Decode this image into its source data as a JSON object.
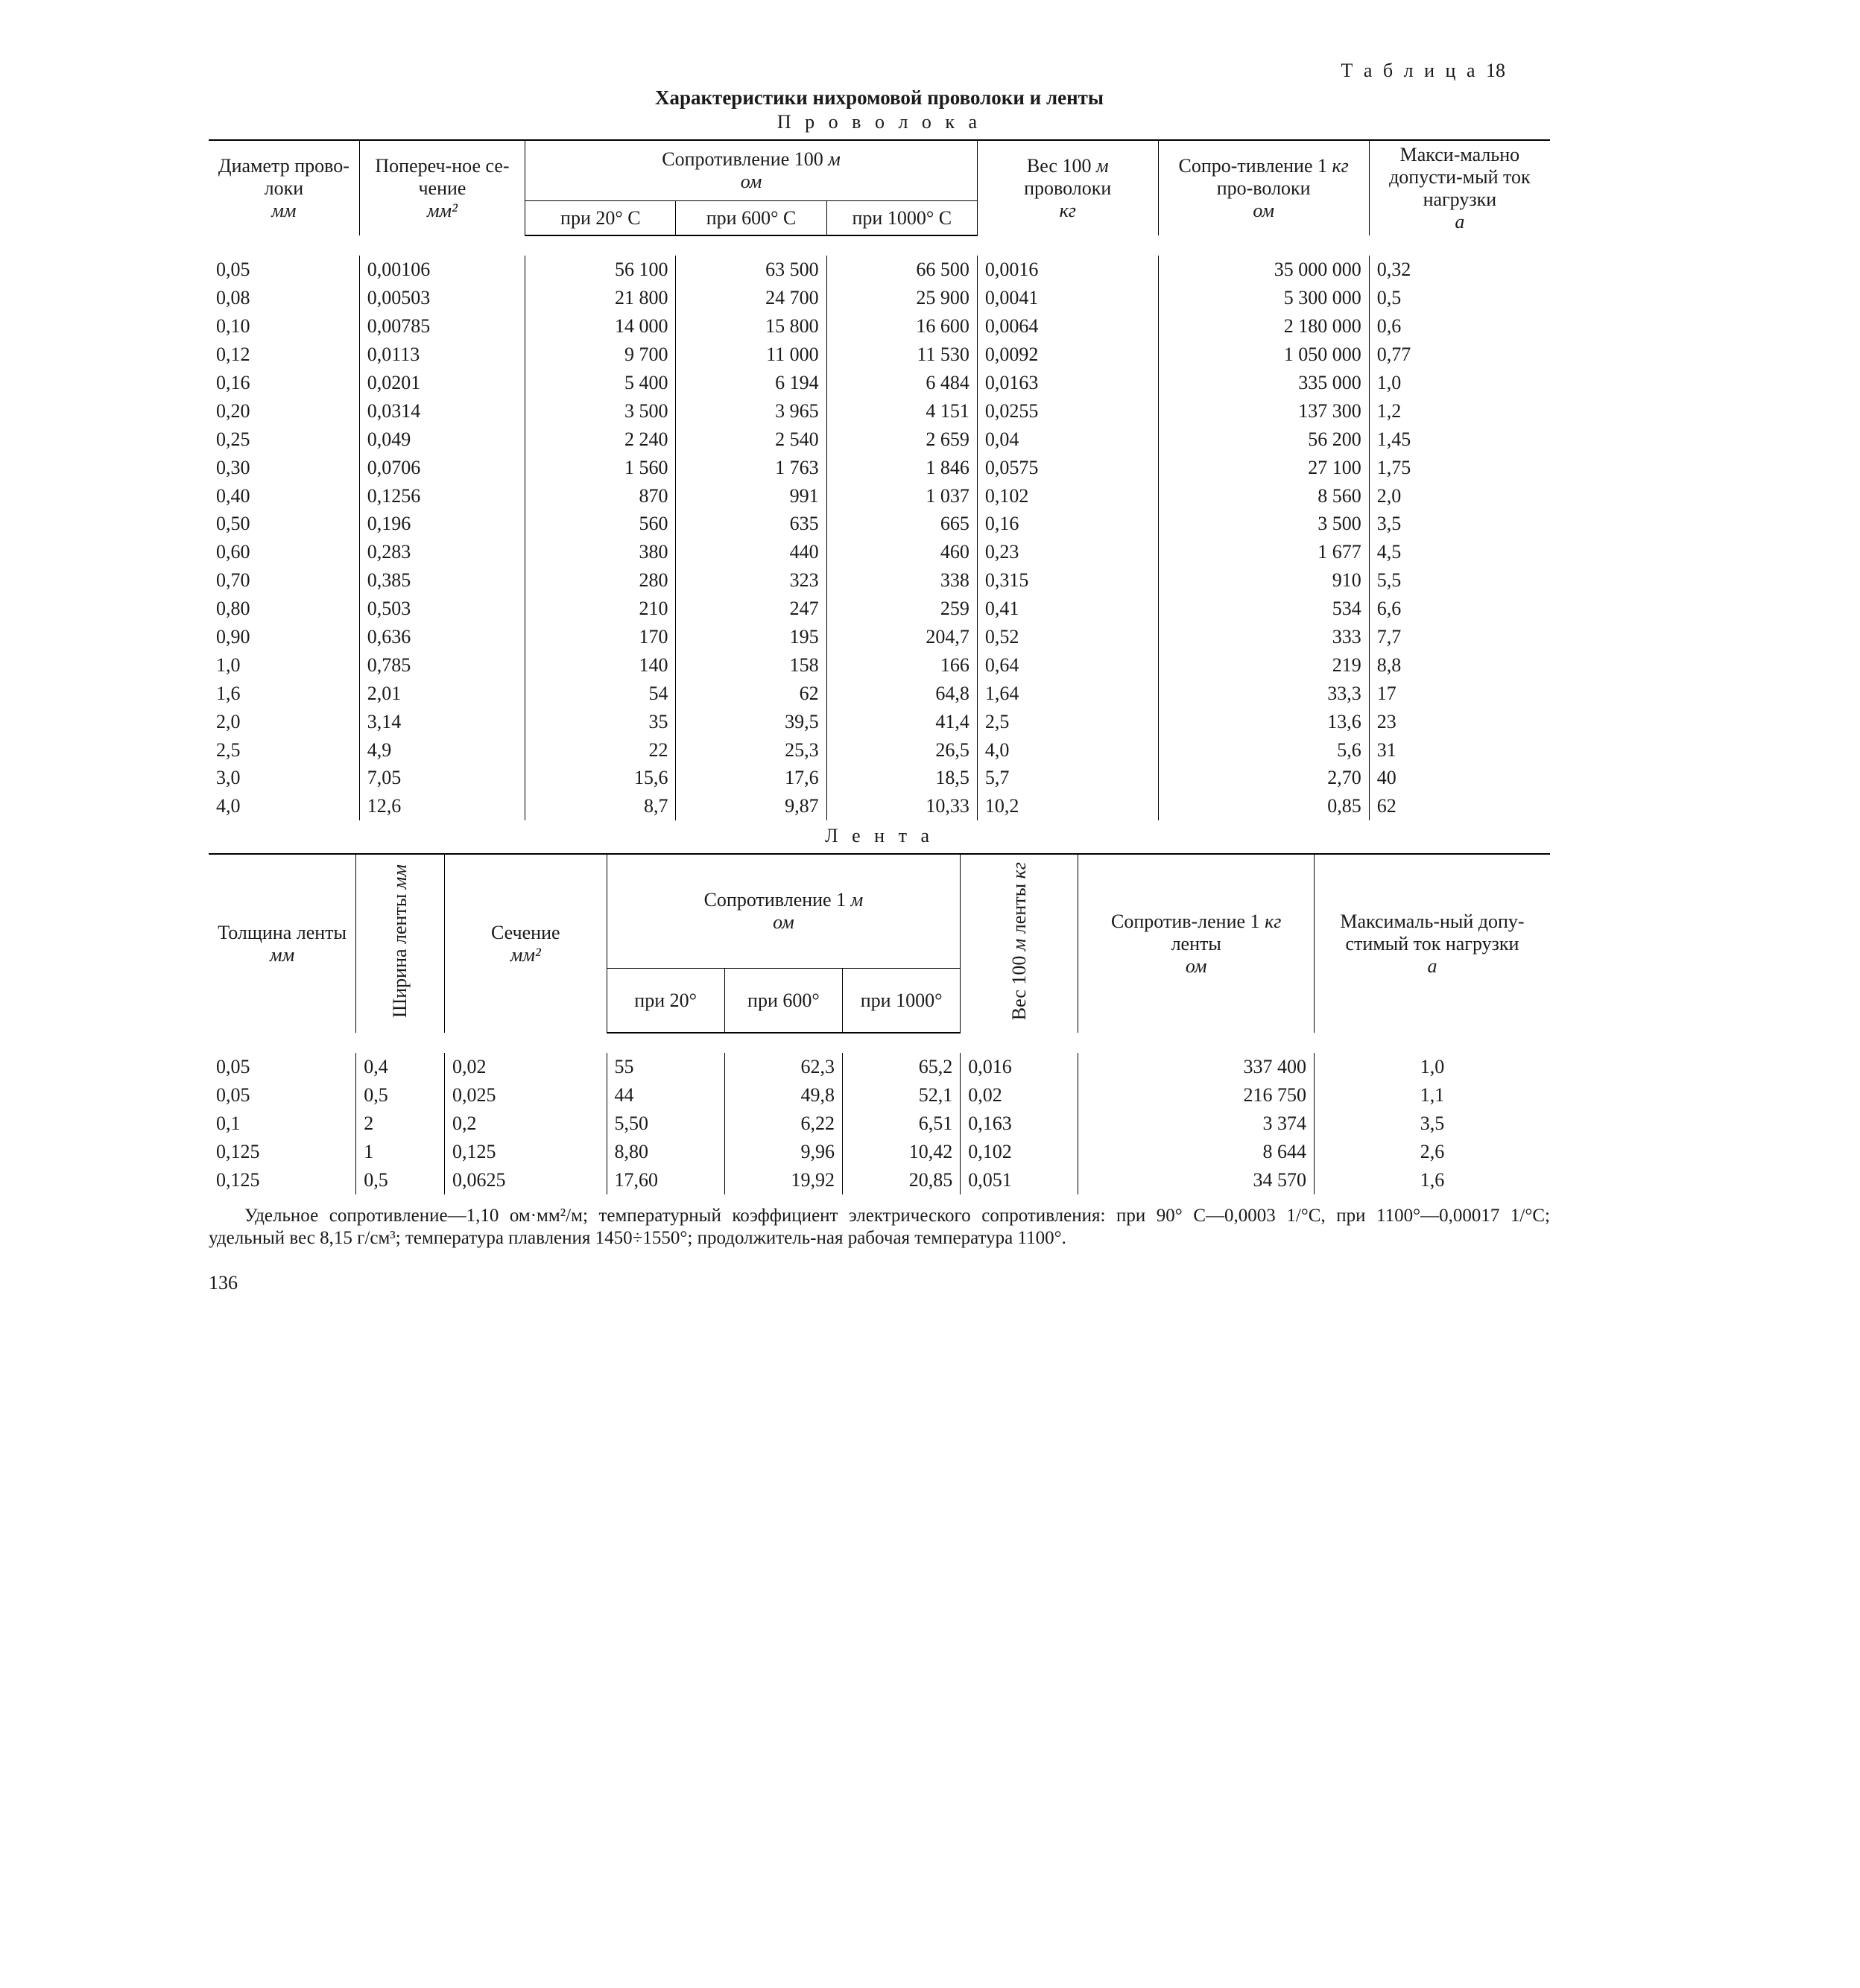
{
  "table_label": "Т а б л и ц а",
  "table_number": "18",
  "title": "Характеристики нихромовой проволоки и ленты",
  "section1": "П р о в о л о к а",
  "section2": "Л е н т а",
  "headers1": {
    "diam": "Диаметр прово-локи",
    "diam_unit": "мм",
    "cross": "Попереч-ное се-чение",
    "cross_unit": "мм²",
    "res_group": "Сопротивление 100 ",
    "res_group_unit": "м",
    "res_group_unit2": "ом",
    "r20": "при 20° С",
    "r600": "при 600° С",
    "r1000": "при 1000° С",
    "weight": "Вес 100 ",
    "weight_unit": "м",
    "weight2": "проволоки",
    "weight_unit2": "кг",
    "rkg": "Сопро-тивление 1 ",
    "rkg_unit": "кг",
    "rkg2": " про-волоки",
    "rkg_unit2": "ом",
    "imax": "Макси-мально допусти-мый ток нагрузки",
    "imax_unit": "а"
  },
  "rows1": [
    [
      "0,05",
      "0,00106",
      "56 100",
      "63 500",
      "66 500",
      "0,0016",
      "35 000 000",
      "0,32"
    ],
    [
      "0,08",
      "0,00503",
      "21 800",
      "24 700",
      "25 900",
      "0,0041",
      "5 300 000",
      "0,5"
    ],
    [
      "0,10",
      "0,00785",
      "14 000",
      "15 800",
      "16 600",
      "0,0064",
      "2 180 000",
      "0,6"
    ],
    [
      "0,12",
      "0,0113",
      "9 700",
      "11 000",
      "11 530",
      "0,0092",
      "1 050 000",
      "0,77"
    ],
    [
      "0,16",
      "0,0201",
      "5 400",
      "6 194",
      "6 484",
      "0,0163",
      "335 000",
      "1,0"
    ],
    [
      "0,20",
      "0,0314",
      "3 500",
      "3 965",
      "4 151",
      "0,0255",
      "137 300",
      "1,2"
    ],
    [
      "0,25",
      "0,049",
      "2 240",
      "2 540",
      "2 659",
      "0,04",
      "56 200",
      "1,45"
    ],
    [
      "0,30",
      "0,0706",
      "1 560",
      "1 763",
      "1 846",
      "0,0575",
      "27 100",
      "1,75"
    ],
    [
      "0,40",
      "0,1256",
      "870",
      "991",
      "1 037",
      "0,102",
      "8 560",
      "2,0"
    ],
    [
      "0,50",
      "0,196",
      "560",
      "635",
      "665",
      "0,16",
      "3 500",
      "3,5"
    ],
    [
      "0,60",
      "0,283",
      "380",
      "440",
      "460",
      "0,23",
      "1 677",
      "4,5"
    ],
    [
      "0,70",
      "0,385",
      "280",
      "323",
      "338",
      "0,315",
      "910",
      "5,5"
    ],
    [
      "0,80",
      "0,503",
      "210",
      "247",
      "259",
      "0,41",
      "534",
      "6,6"
    ],
    [
      "0,90",
      "0,636",
      "170",
      "195",
      "204,7",
      "0,52",
      "333",
      "7,7"
    ],
    [
      "1,0",
      "0,785",
      "140",
      "158",
      "166",
      "0,64",
      "219",
      "8,8"
    ],
    [
      "1,6",
      "2,01",
      "54",
      "62",
      "64,8",
      "1,64",
      "33,3",
      "17"
    ],
    [
      "2,0",
      "3,14",
      "35",
      "39,5",
      "41,4",
      "2,5",
      "13,6",
      "23"
    ],
    [
      "2,5",
      "4,9",
      "22",
      "25,3",
      "26,5",
      "4,0",
      "5,6",
      "31"
    ],
    [
      "3,0",
      "7,05",
      "15,6",
      "17,6",
      "18,5",
      "5,7",
      "2,70",
      "40"
    ],
    [
      "4,0",
      "12,6",
      "8,7",
      "9,87",
      "10,33",
      "10,2",
      "0,85",
      "62"
    ]
  ],
  "headers2": {
    "thick": "Толщина ленты",
    "thick_unit": "мм",
    "width": "Ширина ленты",
    "width_unit": "мм",
    "cross": "Сечение",
    "cross_unit": "мм²",
    "res_group": "Сопротивление 1 ",
    "res_group_unit": "м",
    "res_group_unit2": "ом",
    "r20": "при 20°",
    "r600": "при 600°",
    "r1000": "при 1000°",
    "weight": "Вес 100 ",
    "weight_unit": "м",
    "weight2": "ленты",
    "weight_unit2": "кг",
    "rkg": "Сопротив-ление 1 ",
    "rkg_unit": "кг",
    "rkg2": " ленты",
    "rkg_unit2": "ом",
    "imax": "Максималь-ный допу-стимый ток нагрузки",
    "imax_unit": "а"
  },
  "rows2": [
    [
      "0,05",
      "0,4",
      "0,02",
      "55",
      "62,3",
      "65,2",
      "0,016",
      "337 400",
      "1,0"
    ],
    [
      "0,05",
      "0,5",
      "0,025",
      "44",
      "49,8",
      "52,1",
      "0,02",
      "216 750",
      "1,1"
    ],
    [
      "0,1",
      "2",
      "0,2",
      "5,50",
      "6,22",
      "6,51",
      "0,163",
      "3 374",
      "3,5"
    ],
    [
      "0,125",
      "1",
      "0,125",
      "8,80",
      "9,96",
      "10,42",
      "0,102",
      "8 644",
      "2,6"
    ],
    [
      "0,125",
      "0,5",
      "0,0625",
      "17,60",
      "19,92",
      "20,85",
      "0,051",
      "34 570",
      "1,6"
    ]
  ],
  "footnote": "Удельное сопротивление—1,10 ом·мм²/м; температурный коэффициент электрического сопротивления: при 90° С—0,0003 1/°С, при 1100°—0,00017 1/°С; удельный вес 8,15 г/см³; температура плавления 1450÷1550°; продолжитель-ная рабочая температура 1100°.",
  "page_number": "136",
  "style": {
    "font": "Times New Roman",
    "text_color": "#1a1a1a",
    "bg_color": "#ffffff",
    "rule_color": "#000000",
    "body_fontsize": 26
  }
}
